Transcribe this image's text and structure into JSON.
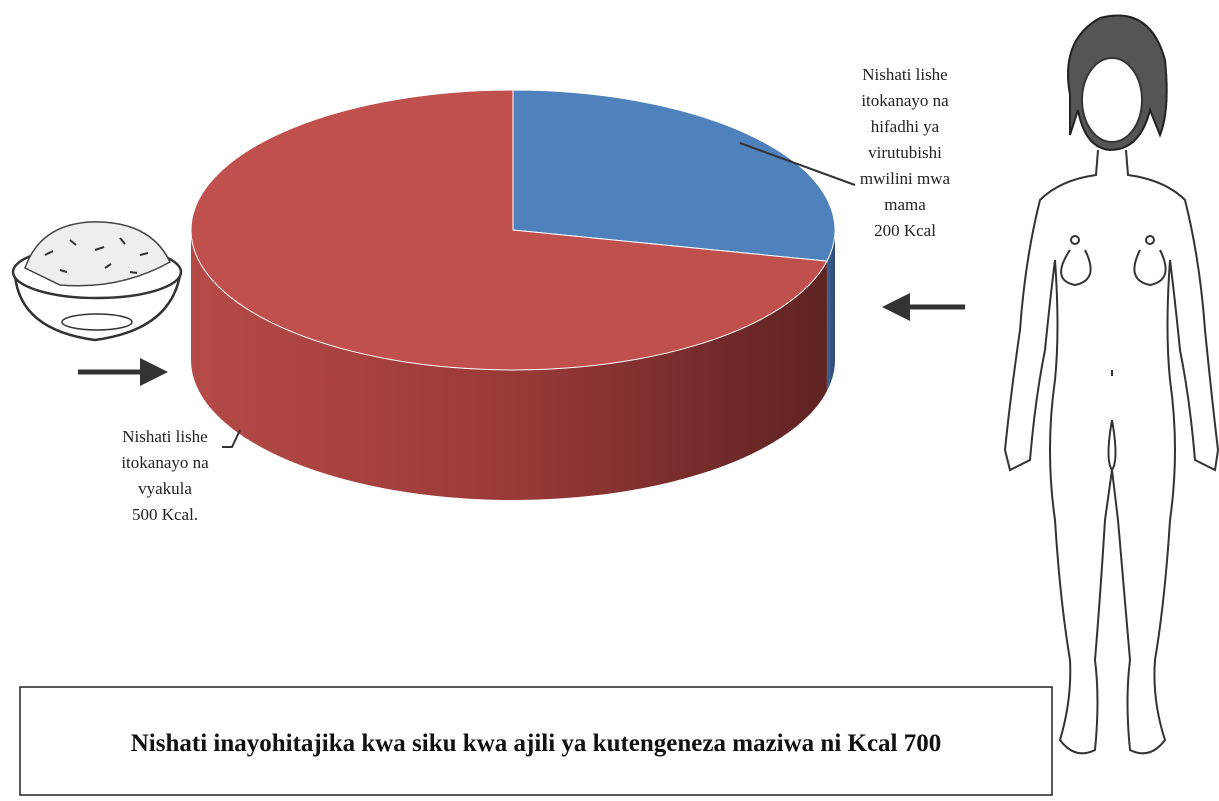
{
  "chart_data": {
    "type": "pie",
    "categories": [
      [
        "Nishati lishe",
        "itokanayo na",
        "hifadhi ya",
        "virutubishi",
        "mwilini mwa",
        "mama"
      ],
      [
        "Nishati lishe",
        "itokanayo na",
        "vyakula"
      ]
    ],
    "values": [
      200,
      500
    ],
    "value_labels": [
      "200 Kcal",
      "500 Kcal."
    ],
    "colors": [
      "#4f81bd",
      "#c0504d"
    ],
    "caption": "Nishati inayohitajika kwa siku kwa ajili ya kutengeneza maziwa ni Kcal 700"
  }
}
